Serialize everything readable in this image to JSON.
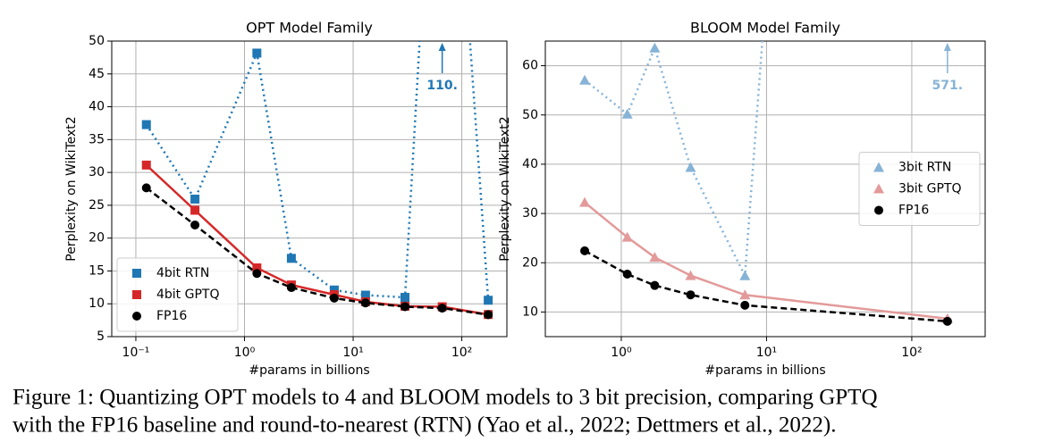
{
  "chart_data": [
    {
      "type": "line",
      "title": "OPT Model Family",
      "xlabel": "#params in billions",
      "ylabel": "Perplexity on WikiText2",
      "xscale": "log",
      "xlim": [
        0.06,
        260
      ],
      "ylim": [
        5,
        50
      ],
      "xticks": [
        {
          "value": 0.1,
          "label": "10⁻¹"
        },
        {
          "value": 1,
          "label": "10⁰"
        },
        {
          "value": 10,
          "label": "10¹"
        },
        {
          "value": 100,
          "label": "10²"
        }
      ],
      "yticks": [
        5,
        10,
        15,
        20,
        25,
        30,
        35,
        40,
        45,
        50
      ],
      "grid": true,
      "legend": "lower left",
      "x": [
        0.125,
        0.35,
        1.3,
        2.7,
        6.7,
        13,
        30,
        66,
        175
      ],
      "series": [
        {
          "name": "4bit RTN",
          "color": "#1f77b4",
          "marker": "square",
          "linestyle": "dotted",
          "values": [
            37.28,
            25.94,
            48.17,
            16.92,
            12.1,
            11.32,
            10.98,
            110,
            10.54
          ],
          "value_labels": [
            null,
            null,
            null,
            null,
            null,
            null,
            null,
            "110.",
            null
          ]
        },
        {
          "name": "4bit GPTQ",
          "color": "#d62728",
          "marker": "square",
          "linestyle": "solid",
          "values": [
            31.12,
            24.24,
            15.47,
            12.87,
            11.39,
            10.31,
            9.63,
            9.55,
            8.37
          ]
        },
        {
          "name": "FP16",
          "color": "#000000",
          "marker": "circle",
          "linestyle": "dashed",
          "values": [
            27.65,
            22.0,
            14.62,
            12.47,
            10.86,
            10.13,
            9.56,
            9.34,
            8.34
          ]
        }
      ]
    },
    {
      "type": "line",
      "title": "BLOOM Model Family",
      "xlabel": "#params in billions",
      "ylabel": "Perplexity on WikiText2",
      "xscale": "log",
      "xlim": [
        0.3,
        320
      ],
      "ylim": [
        5,
        65
      ],
      "xticks": [
        {
          "value": 1,
          "label": "10⁰"
        },
        {
          "value": 10,
          "label": "10¹"
        },
        {
          "value": 100,
          "label": "10²"
        }
      ],
      "yticks": [
        10,
        20,
        30,
        40,
        50,
        60
      ],
      "grid": true,
      "legend": "center right",
      "x": [
        0.56,
        1.1,
        1.7,
        3,
        7.1,
        176
      ],
      "series": [
        {
          "name": "3bit RTN",
          "color": "#86b3d6",
          "marker": "triangle",
          "linestyle": "dotted",
          "values": [
            57.08,
            50.19,
            63.59,
            39.36,
            17.38,
            571
          ],
          "value_labels": [
            null,
            null,
            null,
            null,
            null,
            "571."
          ]
        },
        {
          "name": "3bit GPTQ",
          "color": "#e39a9a",
          "marker": "triangle",
          "linestyle": "solid",
          "values": [
            32.25,
            25.18,
            21.1,
            17.4,
            13.47,
            8.64
          ]
        },
        {
          "name": "FP16",
          "color": "#000000",
          "marker": "circle",
          "linestyle": "dashed",
          "values": [
            22.42,
            17.69,
            15.39,
            13.48,
            11.37,
            8.11
          ]
        }
      ]
    }
  ],
  "caption": [
    "Figure 1: Quantizing OPT models to 4 and BLOOM models to 3 bit precision, comparing GPTQ",
    "with the FP16 baseline and round-to-nearest (RTN) (Yao et al., 2022; Dettmers et al., 2022)."
  ]
}
